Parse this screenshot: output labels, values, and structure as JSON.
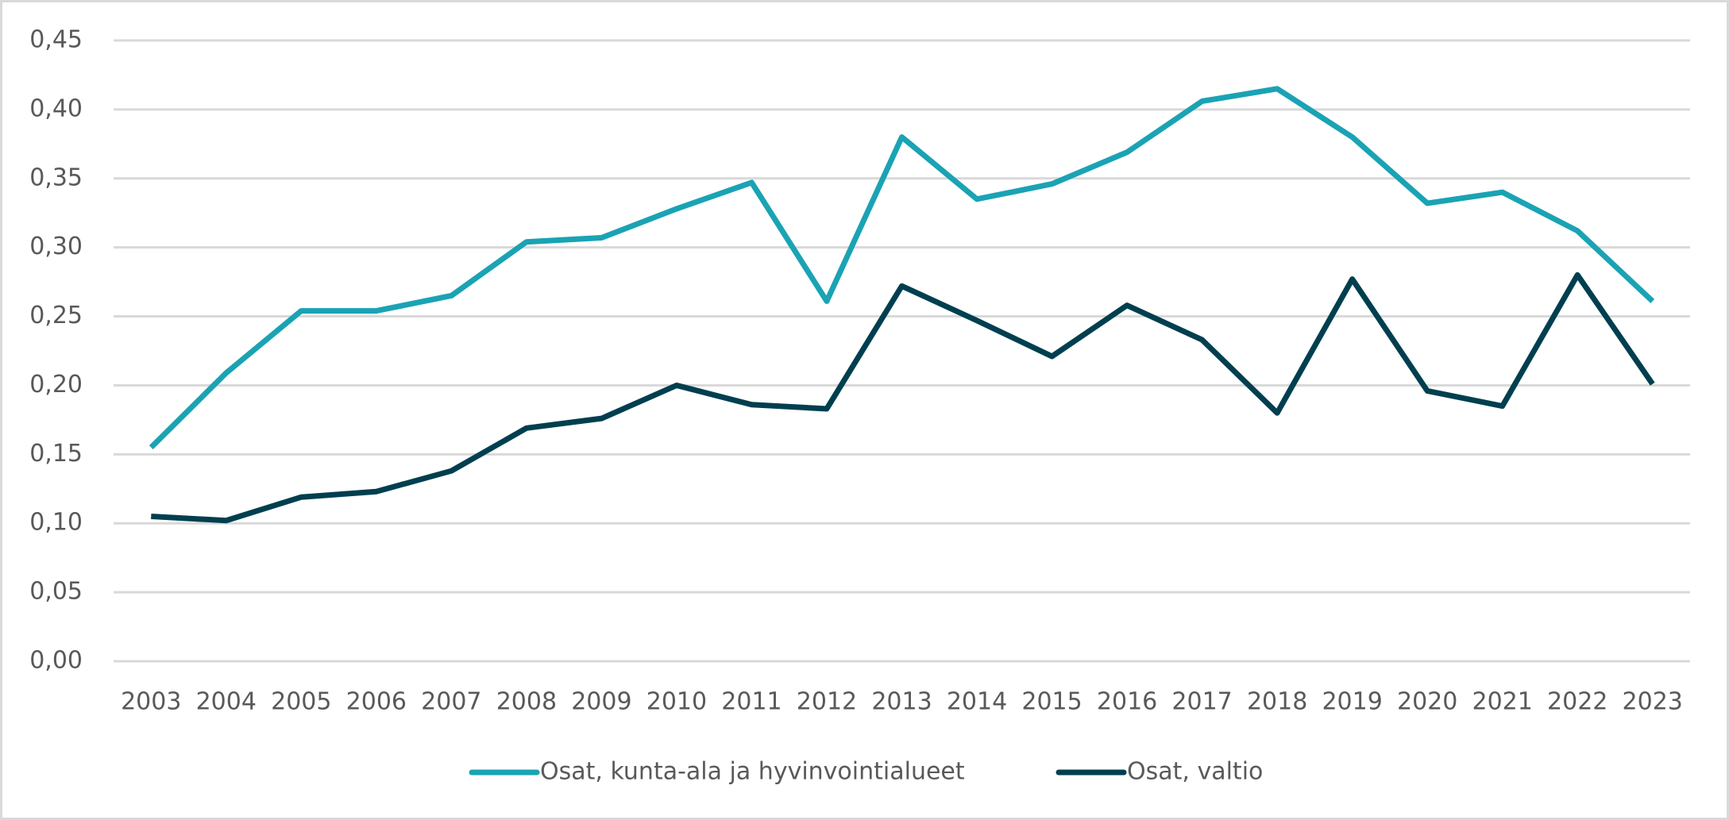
{
  "chart_data": {
    "type": "line",
    "categories": [
      "2003",
      "2004",
      "2005",
      "2006",
      "2007",
      "2008",
      "2009",
      "2010",
      "2011",
      "2012",
      "2013",
      "2014",
      "2015",
      "2016",
      "2017",
      "2018",
      "2019",
      "2020",
      "2021",
      "2022",
      "2023"
    ],
    "series": [
      {
        "name": "Osat, kunta-ala ja hyvinvointialueet",
        "color": "#1aa3b4",
        "values": [
          0.155,
          0.209,
          0.254,
          0.254,
          0.265,
          0.304,
          0.307,
          0.328,
          0.347,
          0.261,
          0.38,
          0.335,
          0.346,
          0.369,
          0.406,
          0.415,
          0.38,
          0.332,
          0.34,
          0.312,
          0.261
        ]
      },
      {
        "name": "Osat, valtio",
        "color": "#003f4f",
        "values": [
          0.105,
          0.102,
          0.119,
          0.123,
          0.138,
          0.169,
          0.176,
          0.2,
          0.186,
          0.183,
          0.272,
          0.247,
          0.221,
          0.258,
          0.233,
          0.18,
          0.277,
          0.196,
          0.185,
          0.28,
          0.201
        ]
      }
    ],
    "ylim": [
      0,
      0.45
    ],
    "yticks": [
      {
        "value": 0,
        "label": "0,00"
      },
      {
        "value": 0.05,
        "label": "0,05"
      },
      {
        "value": 0.1,
        "label": "0,10"
      },
      {
        "value": 0.15,
        "label": "0,15"
      },
      {
        "value": 0.2,
        "label": "0,20"
      },
      {
        "value": 0.25,
        "label": "0,25"
      },
      {
        "value": 0.3,
        "label": "0,30"
      },
      {
        "value": 0.35,
        "label": "0,35"
      },
      {
        "value": 0.4,
        "label": "0,40"
      },
      {
        "value": 0.45,
        "label": "0,45"
      }
    ],
    "grid": true,
    "legend": "bottom"
  }
}
